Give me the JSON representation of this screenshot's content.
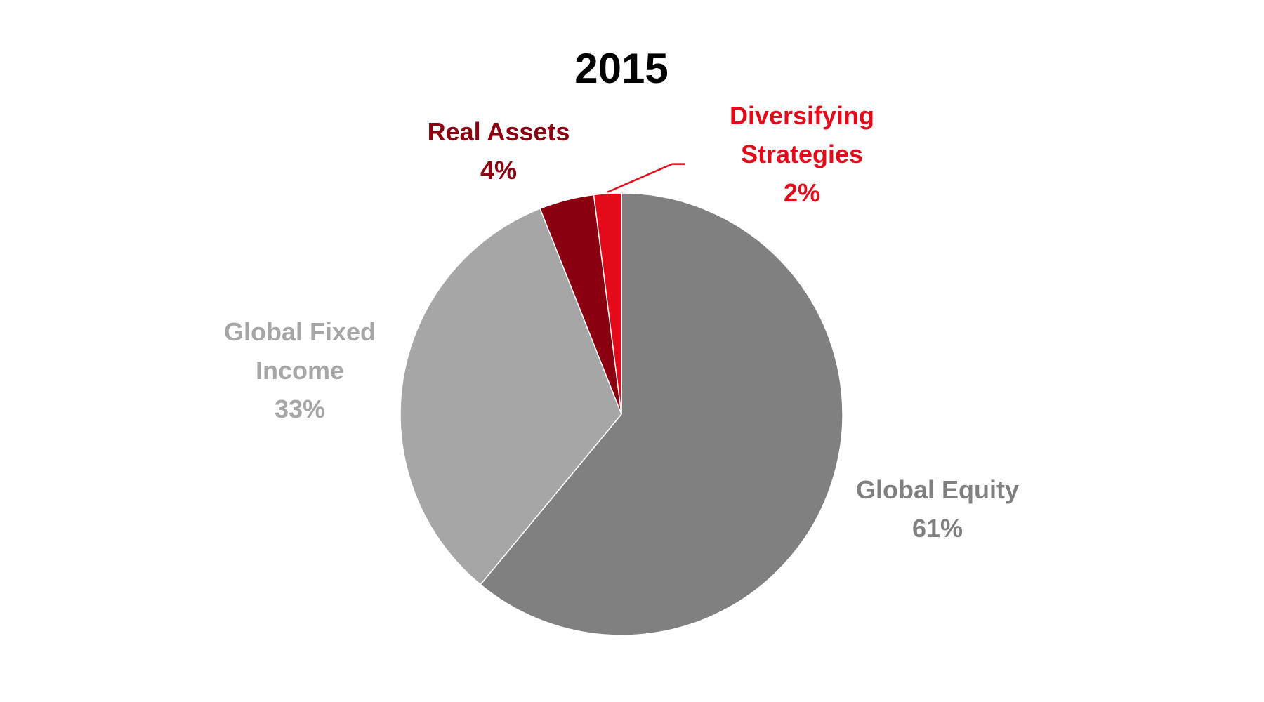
{
  "chart_data": {
    "type": "pie",
    "title": "2015",
    "start_angle_deg": 0,
    "direction": "clockwise",
    "slices": [
      {
        "label_lines": [
          "Global Equity",
          "61%"
        ],
        "value": 61,
        "color": "#808080"
      },
      {
        "label_lines": [
          "Global Fixed",
          "Income",
          "33%"
        ],
        "value": 33,
        "color": "#a6a6a6"
      },
      {
        "label_lines": [
          "Real Assets",
          "4%"
        ],
        "value": 4,
        "color": "#8b0010"
      },
      {
        "label_lines": [
          "Diversifying",
          "Strategies",
          "2%"
        ],
        "value": 2,
        "color": "#e30a1a"
      }
    ]
  }
}
